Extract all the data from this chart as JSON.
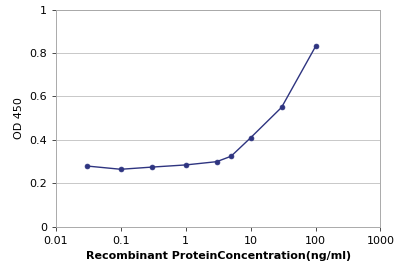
{
  "x": [
    0.03,
    0.1,
    0.3,
    1.0,
    3.0,
    5.0,
    10.0,
    30.0,
    100.0
  ],
  "y": [
    0.28,
    0.265,
    0.275,
    0.285,
    0.3,
    0.325,
    0.41,
    0.55,
    0.83
  ],
  "line_color": "#2e3480",
  "marker_color": "#2e3480",
  "xlabel": "Recombinant ProteinConcentration(ng/ml)",
  "ylabel": "OD 450",
  "xlim": [
    0.01,
    1000
  ],
  "ylim": [
    0,
    1.0
  ],
  "yticks": [
    0,
    0.2,
    0.4,
    0.6,
    0.8,
    1
  ],
  "ytick_labels": [
    "0",
    "0.2",
    "0.4",
    "0.6",
    "0.8",
    "1"
  ],
  "xticks": [
    0.01,
    0.1,
    1,
    10,
    100,
    1000
  ],
  "xtick_labels": [
    "0.01",
    "0.1",
    "1",
    "10",
    "100",
    "1000"
  ],
  "background_color": "#ffffff",
  "grid_color": "#c8c8c8",
  "xlabel_fontsize": 8,
  "ylabel_fontsize": 8,
  "tick_fontsize": 8
}
